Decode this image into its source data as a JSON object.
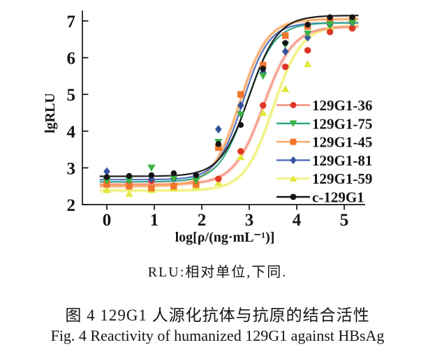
{
  "figure": {
    "note": "RLU:相对单位,下同.",
    "caption_zh": "图 4  129G1 人源化抗体与抗原的结合活性",
    "caption_en": "Fig. 4  Reactivity of humanized 129G1 against HBsAg"
  },
  "chart_data": {
    "type": "scatter",
    "subtype": "sigmoid dose-response curves with fitted lines",
    "title": "",
    "xlabel": "log[ρ/(ng·mL⁻¹)]",
    "ylabel": "lgRLU",
    "xlim": [
      -0.5,
      5.45
    ],
    "ylim": [
      2,
      7.3
    ],
    "xticks": [
      0,
      1,
      2,
      3,
      4,
      5
    ],
    "yticks": [
      2,
      3,
      4,
      5,
      6,
      7
    ],
    "grid": false,
    "legend_position": "right-middle, no frame",
    "x": [
      0,
      0.47,
      0.94,
      1.41,
      1.88,
      2.35,
      2.82,
      3.29,
      3.76,
      4.23,
      4.7,
      5.17
    ],
    "series": [
      {
        "name": "129G1-36",
        "marker": "circle",
        "marker_color": "#df3626",
        "line_color": "#f4907b",
        "halo": true,
        "values": [
          2.6,
          2.55,
          2.65,
          2.5,
          2.55,
          2.7,
          3.45,
          4.7,
          5.75,
          6.2,
          6.7,
          6.8
        ],
        "fit": {
          "bottom": 2.55,
          "top": 6.85,
          "logEC50": 3.3,
          "hill": 1.4
        }
      },
      {
        "name": "129G1-75",
        "marker": "triangle-down",
        "marker_color": "#3cb244",
        "line_color": "#2aa385",
        "halo": false,
        "values": [
          2.65,
          2.65,
          3.0,
          2.7,
          2.65,
          3.7,
          4.45,
          5.5,
          6.35,
          6.65,
          6.9,
          6.95
        ],
        "fit": {
          "bottom": 2.62,
          "top": 6.95,
          "logEC50": 2.95,
          "hill": 1.5
        }
      },
      {
        "name": "129G1-45",
        "marker": "square",
        "marker_color": "#f1762c",
        "line_color": "#f8a55f",
        "halo": true,
        "values": [
          2.55,
          2.5,
          2.45,
          2.5,
          2.55,
          3.55,
          5.0,
          5.8,
          6.6,
          6.85,
          7.0,
          7.05
        ],
        "fit": {
          "bottom": 2.5,
          "top": 7.05,
          "logEC50": 2.8,
          "hill": 1.5
        }
      },
      {
        "name": "129G1-81",
        "marker": "diamond",
        "marker_color": "#34519f",
        "line_color": "#4a6cc0",
        "halo": false,
        "values": [
          2.9,
          2.7,
          2.7,
          2.7,
          2.8,
          4.05,
          4.7,
          5.6,
          6.17,
          6.55,
          6.9,
          6.95
        ],
        "fit": {
          "bottom": 2.68,
          "top": 6.95,
          "logEC50": 2.87,
          "hill": 1.6
        }
      },
      {
        "name": "129G1-59",
        "marker": "triangle-up",
        "marker_color": "#e3e83e",
        "line_color": "#eef06e",
        "halo": true,
        "values": [
          2.4,
          2.3,
          2.4,
          2.45,
          2.5,
          2.6,
          3.3,
          4.5,
          5.15,
          5.83,
          6.85,
          6.85
        ],
        "fit": {
          "bottom": 2.38,
          "top": 6.88,
          "logEC50": 3.5,
          "hill": 1.45
        }
      },
      {
        "name": "c-129G1",
        "marker": "circle",
        "marker_color": "#141414",
        "line_color": "#141414",
        "halo": false,
        "values": [
          2.75,
          2.78,
          2.8,
          2.85,
          2.8,
          3.65,
          4.17,
          5.7,
          6.4,
          6.9,
          7.1,
          7.1
        ],
        "fit": {
          "bottom": 2.77,
          "top": 7.15,
          "logEC50": 3.0,
          "hill": 1.45
        }
      }
    ]
  }
}
